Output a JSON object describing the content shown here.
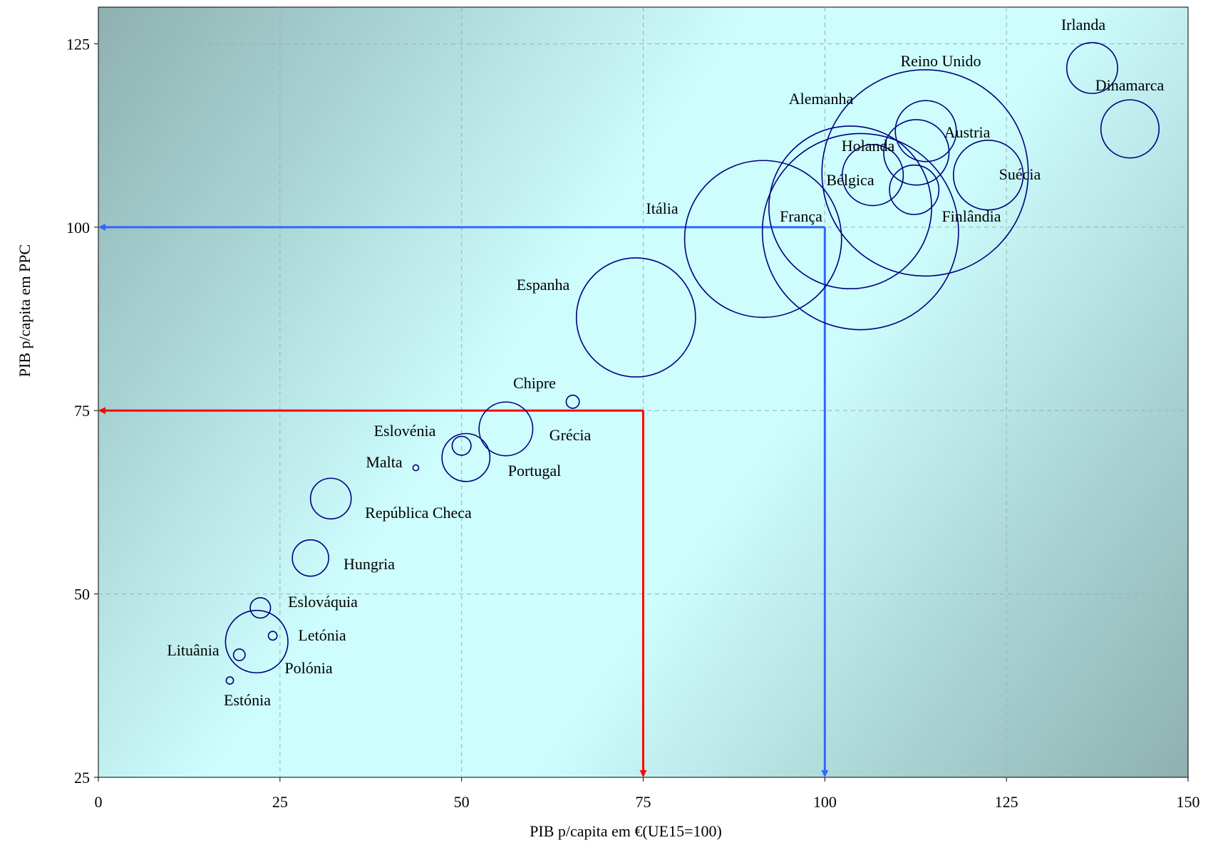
{
  "chart_data": {
    "type": "bubble",
    "xlabel": "PIB p/capita em €(UE15=100)",
    "ylabel": "PIB  p/capita em PPC",
    "xlim": [
      0,
      150
    ],
    "ylim": [
      25,
      130
    ],
    "xticks": [
      0,
      25,
      50,
      75,
      100,
      125,
      150
    ],
    "yticks": [
      25,
      50,
      75,
      100,
      125
    ],
    "grid": true,
    "bubble_color": "#000080",
    "points": [
      {
        "name": "Irlanda",
        "x": 136.8,
        "y": 121.7,
        "size": 3.5
      },
      {
        "name": "Dinamarca",
        "x": 142.0,
        "y": 113.4,
        "size": 4.0
      },
      {
        "name": "Reino Unido",
        "x": 113.8,
        "y": 107.4,
        "size": 14.2
      },
      {
        "name": "Alemanha",
        "x": 103.5,
        "y": 102.7,
        "size": 11.2
      },
      {
        "name": "Austria",
        "x": 113.9,
        "y": 113.1,
        "size": 4.2
      },
      {
        "name": "Holanda",
        "x": 112.6,
        "y": 110.2,
        "size": 4.5
      },
      {
        "name": "Bélgica",
        "x": 106.6,
        "y": 107.1,
        "size": 4.2
      },
      {
        "name": "Suécia",
        "x": 122.5,
        "y": 107.1,
        "size": 4.8
      },
      {
        "name": "Finlândia",
        "x": 112.3,
        "y": 105.1,
        "size": 3.4
      },
      {
        "name": "França",
        "x": 104.9,
        "y": 99.4,
        "size": 13.5
      },
      {
        "name": "Itália",
        "x": 91.5,
        "y": 98.4,
        "size": 10.8
      },
      {
        "name": "Espanha",
        "x": 74.0,
        "y": 87.7,
        "size": 8.2
      },
      {
        "name": "Chipre",
        "x": 65.3,
        "y": 76.2,
        "size": 0.9
      },
      {
        "name": "Grécia",
        "x": 56.1,
        "y": 72.5,
        "size": 3.7
      },
      {
        "name": "Eslovénia",
        "x": 50.0,
        "y": 70.2,
        "size": 1.3
      },
      {
        "name": "Portugal",
        "x": 50.6,
        "y": 68.6,
        "size": 3.3
      },
      {
        "name": "Malta",
        "x": 43.7,
        "y": 67.2,
        "size": 0.4
      },
      {
        "name": "República Checa",
        "x": 32.0,
        "y": 63.0,
        "size": 2.8
      },
      {
        "name": "Hungria",
        "x": 29.2,
        "y": 54.9,
        "size": 2.5
      },
      {
        "name": "Eslováquia",
        "x": 22.3,
        "y": 48.1,
        "size": 1.4
      },
      {
        "name": "Letónia",
        "x": 24.0,
        "y": 44.3,
        "size": 0.6
      },
      {
        "name": "Polónia",
        "x": 21.8,
        "y": 43.5,
        "size": 4.3
      },
      {
        "name": "Lituânia",
        "x": 19.4,
        "y": 41.7,
        "size": 0.8
      },
      {
        "name": "Estónia",
        "x": 18.1,
        "y": 38.2,
        "size": 0.5
      }
    ],
    "reference_lines": [
      {
        "name": "red",
        "color": "#ff0000",
        "x": 75,
        "y": 75
      },
      {
        "name": "blue",
        "color": "#3366ff",
        "x": 100,
        "y": 100
      }
    ]
  }
}
